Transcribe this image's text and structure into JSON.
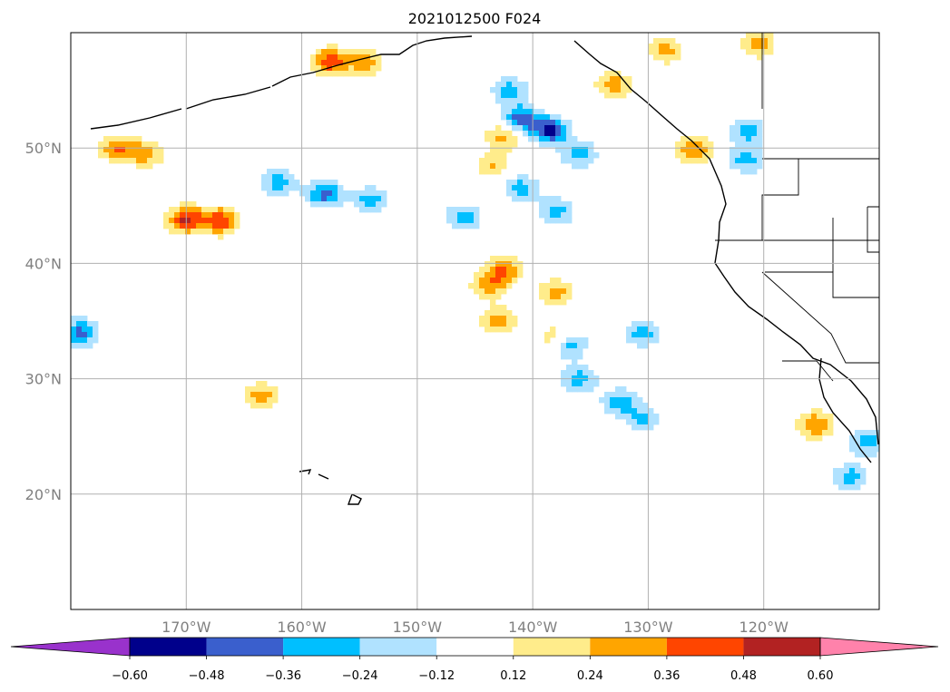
{
  "chart_data": {
    "type": "heatmap",
    "title": "2021012500 F024",
    "map": {
      "lon_range": [
        -180,
        -110
      ],
      "lat_range": [
        10,
        60
      ],
      "lat_ticks": [
        20,
        30,
        40,
        50
      ],
      "lat_tick_labels": [
        "20°N",
        "30°N",
        "40°N",
        "50°N"
      ],
      "lon_ticks": [
        -170,
        -160,
        -150,
        -140,
        -130,
        -120
      ],
      "lon_tick_labels": [
        "170°W",
        "160°W",
        "150°W",
        "140°W",
        "130°W",
        "120°W"
      ],
      "grid": true
    },
    "colorbar": {
      "levels": [
        -0.6,
        -0.48,
        -0.36,
        -0.24,
        -0.12,
        0.12,
        0.24,
        0.36,
        0.48,
        0.6
      ],
      "tick_labels": [
        "−0.60",
        "−0.48",
        "−0.36",
        "−0.24",
        "−0.12",
        "0.12",
        "0.24",
        "0.36",
        "0.48",
        "0.60"
      ],
      "colors": [
        "#9932cc",
        "#00008b",
        "#3a5fcd",
        "#00bfff",
        "#b0e2ff",
        "#ffffff",
        "#ffec8b",
        "#ffa500",
        "#ff4500",
        "#b22222",
        "#ff82ab"
      ],
      "extend": "both"
    },
    "features": [
      {
        "lon": -141,
        "lat": 52.5,
        "v": -0.45
      },
      {
        "lon": -138.5,
        "lat": 51.5,
        "v": -0.5
      },
      {
        "lon": -136,
        "lat": 49.5,
        "v": -0.3
      },
      {
        "lon": -142,
        "lat": 55,
        "v": -0.3
      },
      {
        "lon": -158,
        "lat": 46,
        "v": -0.4
      },
      {
        "lon": -162,
        "lat": 47,
        "v": -0.3
      },
      {
        "lon": -154,
        "lat": 45.5,
        "v": -0.3
      },
      {
        "lon": -170,
        "lat": 43.8,
        "v": 0.5
      },
      {
        "lon": -167,
        "lat": 43.7,
        "v": 0.45
      },
      {
        "lon": -176,
        "lat": 50,
        "v": 0.36
      },
      {
        "lon": -173.5,
        "lat": 49.5,
        "v": 0.3
      },
      {
        "lon": -142.5,
        "lat": 51,
        "v": 0.3
      },
      {
        "lon": -143.5,
        "lat": 48.5,
        "v": 0.25
      },
      {
        "lon": -142.5,
        "lat": 39.5,
        "v": 0.36
      },
      {
        "lon": -143.8,
        "lat": 38,
        "v": 0.3
      },
      {
        "lon": -157.5,
        "lat": 57.5,
        "v": 0.45
      },
      {
        "lon": -154.5,
        "lat": 57.5,
        "v": 0.3
      },
      {
        "lon": -137,
        "lat": 33,
        "v": -0.4
      },
      {
        "lon": -136,
        "lat": 30,
        "v": -0.3
      },
      {
        "lon": -132.5,
        "lat": 28,
        "v": -0.3
      },
      {
        "lon": -130.5,
        "lat": 26.5,
        "v": -0.25
      },
      {
        "lon": -179.2,
        "lat": 34,
        "v": -0.4
      },
      {
        "lon": -130.5,
        "lat": 34,
        "v": -0.3
      },
      {
        "lon": -115.5,
        "lat": 26,
        "v": 0.36
      },
      {
        "lon": -112.5,
        "lat": 21.5,
        "v": -0.3
      },
      {
        "lon": -111,
        "lat": 24.5,
        "v": -0.3
      },
      {
        "lon": -126,
        "lat": 49.8,
        "v": 0.36
      },
      {
        "lon": -121.5,
        "lat": 49,
        "v": -0.3
      },
      {
        "lon": -121.5,
        "lat": 51.5,
        "v": -0.3
      },
      {
        "lon": -163.5,
        "lat": 28.5,
        "v": 0.3
      },
      {
        "lon": -138,
        "lat": 37.5,
        "v": 0.3
      },
      {
        "lon": -120.5,
        "lat": 59,
        "v": 0.3
      },
      {
        "lon": -133,
        "lat": 55.5,
        "v": 0.3
      },
      {
        "lon": -128.5,
        "lat": 58.5,
        "v": 0.28
      },
      {
        "lon": -146,
        "lat": 44,
        "v": -0.3
      },
      {
        "lon": -141,
        "lat": 46.5,
        "v": -0.3
      },
      {
        "lon": -138,
        "lat": 44.5,
        "v": -0.3
      },
      {
        "lon": -143,
        "lat": 35,
        "v": 0.3
      },
      {
        "lon": -138,
        "lat": 33.5,
        "v": 0.3
      }
    ]
  }
}
